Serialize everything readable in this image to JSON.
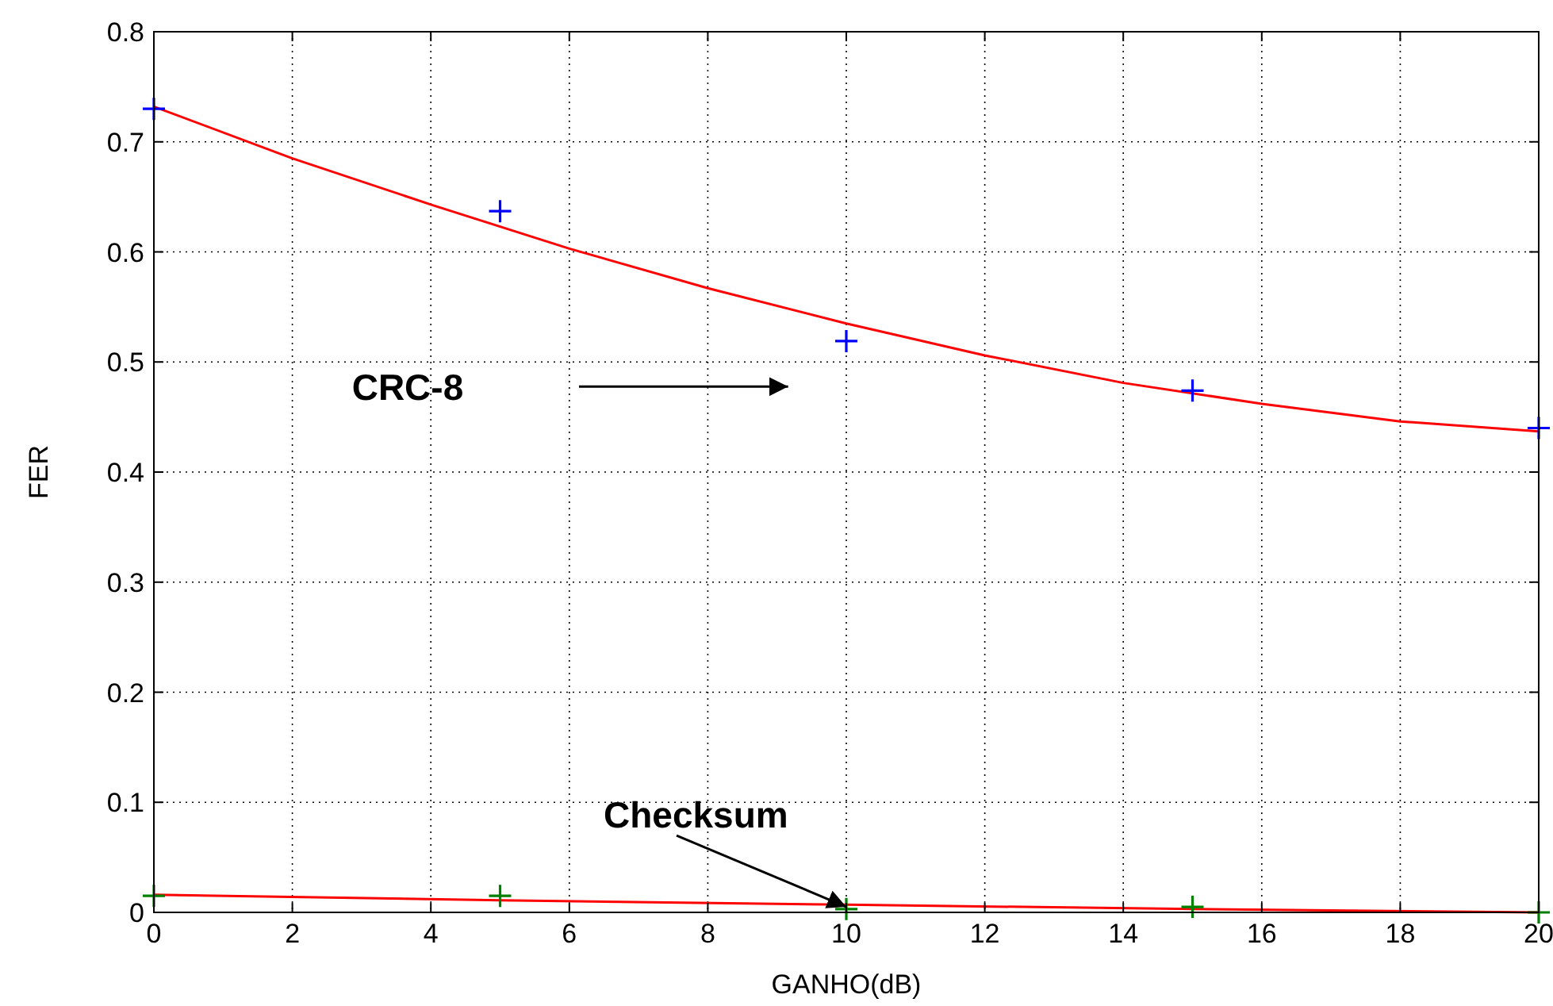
{
  "chart_data": {
    "type": "scatter",
    "xlabel": "GANHO(dB)",
    "ylabel": "FER",
    "xlim": [
      0,
      20
    ],
    "ylim": [
      0,
      0.8
    ],
    "xticks": [
      0,
      2,
      4,
      6,
      8,
      10,
      12,
      14,
      16,
      18,
      20
    ],
    "yticks": [
      0,
      0.1,
      0.2,
      0.3,
      0.4,
      0.5,
      0.6,
      0.7,
      0.8
    ],
    "grid": true,
    "marker": "cross",
    "series": [
      {
        "color": "#0000ff",
        "x": [
          0,
          5,
          10,
          15,
          20
        ],
        "values": [
          0.73,
          0.637,
          0.519,
          0.474,
          0.44
        ]
      },
      {
        "color": "#008000",
        "x": [
          0,
          5,
          10,
          15,
          20
        ],
        "values": [
          0.015,
          0.015,
          0.003,
          0.005,
          0.0
        ]
      },
      {
        "type": "line",
        "color": "#ff0000",
        "marker": "none",
        "x": [
          0,
          2,
          4,
          6,
          8,
          10,
          12,
          14,
          16,
          18,
          20
        ],
        "values": [
          0.732,
          0.685,
          0.643,
          0.603,
          0.567,
          0.535,
          0.506,
          0.481,
          0.462,
          0.446,
          0.437
        ]
      },
      {
        "type": "line",
        "color": "#ff0000",
        "marker": "none",
        "x": [
          0,
          5,
          10,
          15,
          20
        ],
        "values": [
          0.016,
          0.011,
          0.007,
          0.003,
          0.0
        ]
      }
    ],
    "annotations": [
      "CRC-8",
      {
        "text": "Checksum",
        "x": 10,
        "y": 0.005
      }
    ]
  }
}
